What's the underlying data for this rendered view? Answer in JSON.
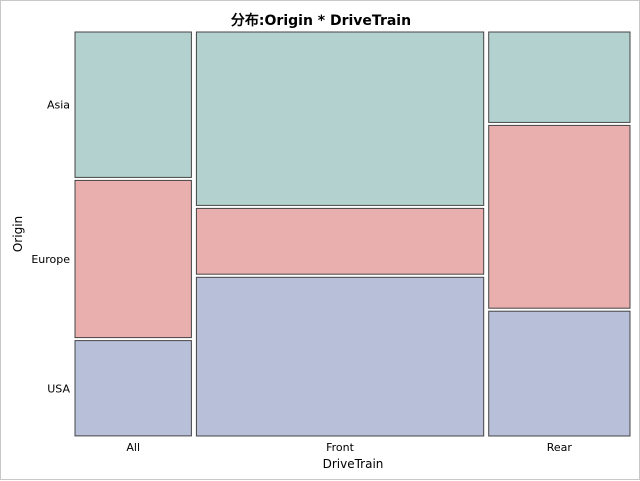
{
  "chart_data": {
    "type": "mosaic",
    "title": "分布:Origin * DriveTrain",
    "xlabel": "DriveTrain",
    "ylabel": "Origin",
    "x_categories": [
      "All",
      "Front",
      "Rear"
    ],
    "x_shares": [
      0.2925,
      0.7222,
      0.3553
    ],
    "y_categories": [
      "Asia",
      "Europe",
      "USA"
    ],
    "proportions": {
      "All": {
        "Asia": 0.3653,
        "Europe": 0.3951,
        "USA": 0.2395
      },
      "Front": {
        "Asia": 0.4358,
        "Europe": 0.1654,
        "USA": 0.3988
      },
      "Rear": {
        "Asia": 0.2272,
        "Europe": 0.4593,
        "USA": 0.3136
      }
    },
    "colors": {
      "Asia": "#b3d2cf",
      "Europe": "#e8afae",
      "USA": "#b8bfd9"
    },
    "tile_border": "#444444",
    "grid": false
  }
}
